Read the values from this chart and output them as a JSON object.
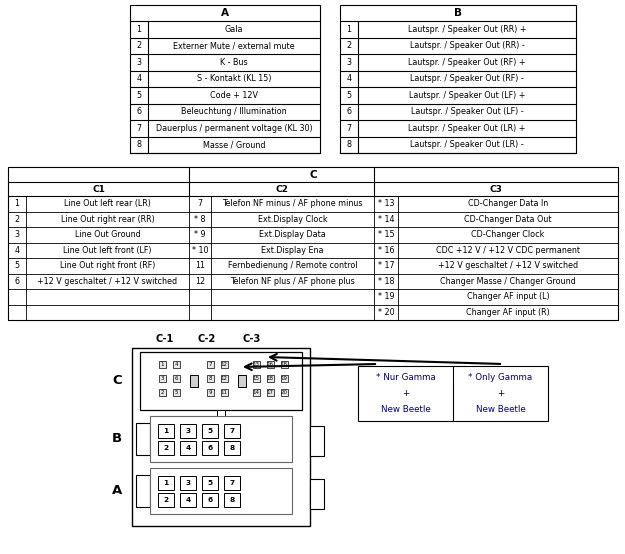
{
  "bg_color": "#ffffff",
  "border_color": "#000000",
  "text_color": "#000000",
  "table_A_header": "A",
  "table_B_header": "B",
  "table_A_rows": [
    [
      1,
      "Gala"
    ],
    [
      2,
      "Externer Mute / external mute"
    ],
    [
      3,
      "K - Bus"
    ],
    [
      4,
      "S - Kontakt (KL 15)"
    ],
    [
      5,
      "Code + 12V"
    ],
    [
      6,
      "Beleuchtung / Illumination"
    ],
    [
      7,
      "Dauerplus / permanent voltage (KL 30)"
    ],
    [
      8,
      "Masse / Ground"
    ]
  ],
  "table_B_rows": [
    [
      1,
      "Lautspr. / Speaker Out (RR) +"
    ],
    [
      2,
      "Lautspr. / Speaker Out (RR) -"
    ],
    [
      3,
      "Lautspr. / Speaker Out (RF) +"
    ],
    [
      4,
      "Lautspr. / Speaker Out (RF) -"
    ],
    [
      5,
      "Lautspr. / Speaker Out (LF) +"
    ],
    [
      6,
      "Lautspr. / Speaker Out (LF) -"
    ],
    [
      7,
      "Lautspr. / Speaker Out (LR) +"
    ],
    [
      8,
      "Lautspr. / Speaker Out (LR) -"
    ]
  ],
  "table_C_header": "C",
  "table_C1_header": "C1",
  "table_C2_header": "C2",
  "table_C3_header": "C3",
  "table_C1_rows": [
    [
      1,
      "Line Out left rear (LR)"
    ],
    [
      2,
      "Line Out right rear (RR)"
    ],
    [
      3,
      "Line Out Ground"
    ],
    [
      4,
      "Line Out left front (LF)"
    ],
    [
      5,
      "Line Out right front (RF)"
    ],
    [
      6,
      "+12 V geschaltet / +12 V switched"
    ]
  ],
  "table_C2_rows": [
    [
      7,
      "Telefon NF minus / AF phone minus"
    ],
    [
      "* 8",
      "Ext.Display Clock"
    ],
    [
      "* 9",
      "Ext.Display Data"
    ],
    [
      "* 10",
      "Ext.Display Ena"
    ],
    [
      11,
      "Fernbedienung / Remote control"
    ],
    [
      12,
      "Telefon NF plus / AF phone plus"
    ]
  ],
  "table_C3_rows": [
    [
      "* 13",
      "CD-Changer Data In"
    ],
    [
      "* 14",
      "CD-Changer Data Out"
    ],
    [
      "* 15",
      "CD-Changer Clock"
    ],
    [
      "* 16",
      "CDC +12 V / +12 V CDC permanent"
    ],
    [
      "* 17",
      "+12 V geschaltet / +12 V switched"
    ],
    [
      "* 18",
      "Changer Masse / Changer Ground"
    ],
    [
      "* 19",
      "Changer AF input (L)"
    ],
    [
      "* 20",
      "Changer AF input (R)"
    ]
  ],
  "note_de": "* Nur Gamma\n+\nNew Beetle",
  "note_en": "* Only Gamma\n+\nNew Beetle",
  "pin_labels_top": [
    "1",
    "3",
    "5",
    "7"
  ],
  "pin_labels_bot": [
    "2",
    "4",
    "6",
    "8"
  ]
}
